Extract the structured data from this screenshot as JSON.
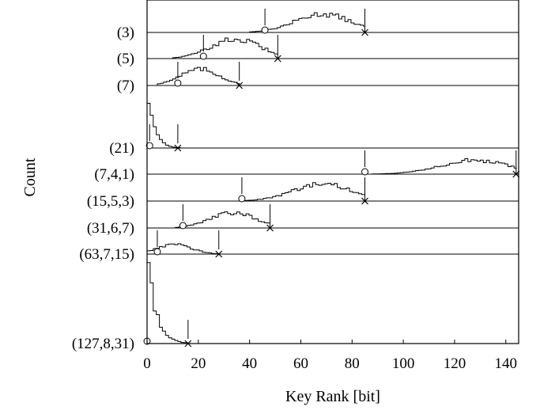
{
  "chart_data": {
    "type": "histogram-ridgeline",
    "title": "",
    "xlabel": "Key Rank [bit]",
    "ylabel": "Count",
    "xlim": [
      0,
      145
    ],
    "xticks": [
      0,
      20,
      40,
      60,
      80,
      100,
      120,
      140
    ],
    "marker_legend": {
      "circle": "",
      "cross": ""
    },
    "series": [
      {
        "name": "(3)",
        "support": [
          40,
          85
        ],
        "peak": 68,
        "circle": 46,
        "cross": 85
      },
      {
        "name": "(5)",
        "support": [
          10,
          51
        ],
        "peak": 34,
        "circle": 22,
        "cross": 51
      },
      {
        "name": "(7)",
        "support": [
          4,
          36
        ],
        "peak": 20,
        "circle": 12,
        "cross": 36
      },
      {
        "name": "(21)",
        "support": [
          0,
          13
        ],
        "peak": 1,
        "circle": 1,
        "cross": 12
      },
      {
        "name": "(7,4,1)",
        "support": [
          88,
          144
        ],
        "peak": 127,
        "circle": 85,
        "cross": 144
      },
      {
        "name": "(15,5,3)",
        "support": [
          37,
          85
        ],
        "peak": 68,
        "circle": 37,
        "cross": 85
      },
      {
        "name": "(31,6,7)",
        "support": [
          11,
          48
        ],
        "peak": 33,
        "circle": 14,
        "cross": 48
      },
      {
        "name": "(63,7,15)",
        "support": [
          0,
          28
        ],
        "peak": 10,
        "circle": 4,
        "cross": 28
      },
      {
        "name": "(127,8,31)",
        "support": [
          0,
          16
        ],
        "peak": 0,
        "circle": 0,
        "cross": 16
      }
    ]
  }
}
